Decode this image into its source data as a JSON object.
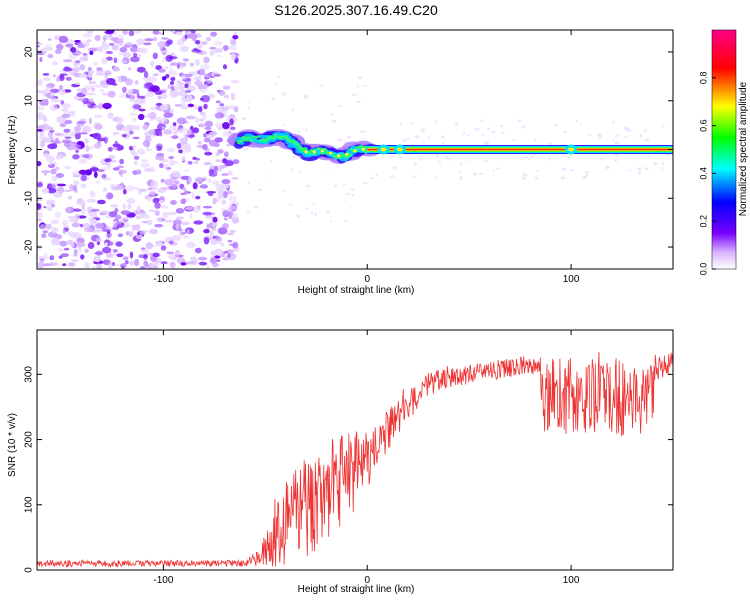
{
  "title": "S126.2025.307.16.49.C20",
  "chart_data": [
    {
      "type": "heatmap",
      "title": "S126.2025.307.16.49.C20",
      "xlabel": "Height of straight line (km)",
      "ylabel": "Frequency (Hz)",
      "xlim": [
        -162,
        150
      ],
      "ylim": [
        -24.5,
        24.5
      ],
      "xticks": [
        -100,
        0,
        100
      ],
      "yticks": [
        -20,
        -10,
        0,
        10,
        20
      ],
      "noise_region_x": [
        -162,
        -64
      ],
      "signal_track": [
        {
          "x": -63,
          "y": 1.5
        },
        {
          "x": -58,
          "y": 2.5
        },
        {
          "x": -52,
          "y": 2
        },
        {
          "x": -46,
          "y": 2.5
        },
        {
          "x": -40,
          "y": 2.5
        },
        {
          "x": -36,
          "y": 1
        },
        {
          "x": -32,
          "y": 0
        },
        {
          "x": -28,
          "y": -1
        },
        {
          "x": -24,
          "y": 0
        },
        {
          "x": -20,
          "y": -0.5
        },
        {
          "x": -16,
          "y": -1
        },
        {
          "x": -12,
          "y": -1.5
        },
        {
          "x": -8,
          "y": -0.5
        },
        {
          "x": -4,
          "y": 0
        },
        {
          "x": 0,
          "y": 0
        },
        {
          "x": 150,
          "y": 0
        }
      ],
      "colorbar": {
        "label": "Normalized spectral amplitude",
        "ticks": [
          0.0,
          0.2,
          0.4,
          0.6,
          0.8
        ],
        "range": [
          0,
          1
        ]
      }
    },
    {
      "type": "line",
      "xlabel": "Height of straight line (km)",
      "ylabel": "SNR (10 * v/v)",
      "xlim": [
        -162,
        150
      ],
      "ylim": [
        0,
        368
      ],
      "xticks": [
        -100,
        0,
        100
      ],
      "yticks": [
        0,
        100,
        200,
        300
      ],
      "series": [
        {
          "name": "SNR",
          "color": "#ee3333",
          "envelope": [
            {
              "x": -162,
              "mean": 10,
              "spread": 5
            },
            {
              "x": -60,
              "mean": 10,
              "spread": 5
            },
            {
              "x": -52,
              "mean": 20,
              "spread": 15
            },
            {
              "x": -45,
              "mean": 60,
              "spread": 55
            },
            {
              "x": -35,
              "mean": 85,
              "spread": 75
            },
            {
              "x": -25,
              "mean": 110,
              "spread": 80
            },
            {
              "x": -15,
              "mean": 130,
              "spread": 80
            },
            {
              "x": -5,
              "mean": 150,
              "spread": 70
            },
            {
              "x": 0,
              "mean": 170,
              "spread": 45
            },
            {
              "x": 10,
              "mean": 210,
              "spread": 35
            },
            {
              "x": 20,
              "mean": 250,
              "spread": 25
            },
            {
              "x": 30,
              "mean": 285,
              "spread": 18
            },
            {
              "x": 40,
              "mean": 295,
              "spread": 15
            },
            {
              "x": 50,
              "mean": 300,
              "spread": 15
            },
            {
              "x": 60,
              "mean": 305,
              "spread": 15
            },
            {
              "x": 70,
              "mean": 310,
              "spread": 15
            },
            {
              "x": 80,
              "mean": 315,
              "spread": 15
            },
            {
              "x": 85,
              "mean": 315,
              "spread": 20
            },
            {
              "x": 86,
              "mean": 265,
              "spread": 60
            },
            {
              "x": 100,
              "mean": 268,
              "spread": 60
            },
            {
              "x": 120,
              "mean": 265,
              "spread": 60
            },
            {
              "x": 140,
              "mean": 262,
              "spread": 60
            },
            {
              "x": 141,
              "mean": 310,
              "spread": 20
            },
            {
              "x": 150,
              "mean": 318,
              "spread": 18
            }
          ]
        }
      ]
    }
  ]
}
